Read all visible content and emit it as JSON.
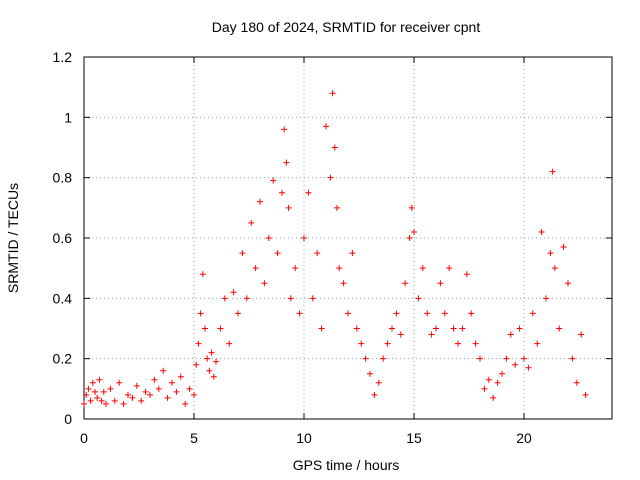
{
  "chart_data": {
    "type": "scatter",
    "title": "Day 180 of 2024, SRMTID for receiver cpnt",
    "xlabel": "GPS time / hours",
    "ylabel": "SRMTID / TECUs",
    "xlim": [
      0,
      24
    ],
    "ylim": [
      0,
      1.2
    ],
    "xticks": [
      0,
      5,
      10,
      15,
      20
    ],
    "xtick_labels": [
      "0",
      "5",
      "10",
      "15",
      "20"
    ],
    "yticks": [
      0,
      0.2,
      0.4,
      0.6,
      0.8,
      1,
      1.2
    ],
    "ytick_labels": [
      "0",
      "0.2",
      "0.4",
      "0.6",
      "0.8",
      "1",
      "1.2"
    ],
    "grid": true,
    "marker": "+",
    "color": "#ff0000",
    "series": [
      {
        "name": "SRMTID",
        "x": [
          0.0,
          0.1,
          0.2,
          0.3,
          0.4,
          0.5,
          0.6,
          0.7,
          0.8,
          0.9,
          1.0,
          1.2,
          1.4,
          1.6,
          1.8,
          2.0,
          2.2,
          2.4,
          2.6,
          2.8,
          3.0,
          3.2,
          3.4,
          3.6,
          3.8,
          4.0,
          4.2,
          4.4,
          4.6,
          4.8,
          5.0,
          5.1,
          5.2,
          5.3,
          5.4,
          5.5,
          5.6,
          5.7,
          5.8,
          5.9,
          6.0,
          6.2,
          6.4,
          6.6,
          6.8,
          7.0,
          7.2,
          7.4,
          7.6,
          7.8,
          8.0,
          8.2,
          8.4,
          8.6,
          8.8,
          9.0,
          9.1,
          9.2,
          9.3,
          9.4,
          9.6,
          9.8,
          10.0,
          10.2,
          10.4,
          10.6,
          10.8,
          11.0,
          11.2,
          11.3,
          11.4,
          11.5,
          11.6,
          11.8,
          12.0,
          12.2,
          12.4,
          12.6,
          12.8,
          13.0,
          13.2,
          13.4,
          13.6,
          13.8,
          14.0,
          14.2,
          14.4,
          14.6,
          14.8,
          14.9,
          15.0,
          15.2,
          15.4,
          15.6,
          15.8,
          16.0,
          16.2,
          16.4,
          16.6,
          16.8,
          17.0,
          17.2,
          17.4,
          17.6,
          17.8,
          18.0,
          18.2,
          18.4,
          18.6,
          18.8,
          19.0,
          19.2,
          19.4,
          19.6,
          19.8,
          20.0,
          20.2,
          20.4,
          20.6,
          20.8,
          21.0,
          21.2,
          21.3,
          21.4,
          21.6,
          21.8,
          22.0,
          22.2,
          22.4,
          22.6,
          22.8
        ],
        "y": [
          0.05,
          0.08,
          0.1,
          0.06,
          0.12,
          0.09,
          0.07,
          0.13,
          0.06,
          0.09,
          0.05,
          0.1,
          0.06,
          0.12,
          0.05,
          0.08,
          0.07,
          0.11,
          0.06,
          0.09,
          0.08,
          0.13,
          0.1,
          0.16,
          0.07,
          0.12,
          0.09,
          0.14,
          0.05,
          0.1,
          0.08,
          0.18,
          0.25,
          0.35,
          0.48,
          0.3,
          0.2,
          0.16,
          0.22,
          0.14,
          0.19,
          0.3,
          0.4,
          0.25,
          0.42,
          0.35,
          0.55,
          0.4,
          0.65,
          0.5,
          0.72,
          0.45,
          0.6,
          0.79,
          0.55,
          0.75,
          0.96,
          0.85,
          0.7,
          0.4,
          0.5,
          0.35,
          0.6,
          0.75,
          0.4,
          0.55,
          0.3,
          0.97,
          0.8,
          1.08,
          0.9,
          0.7,
          0.5,
          0.45,
          0.35,
          0.55,
          0.3,
          0.25,
          0.2,
          0.15,
          0.08,
          0.12,
          0.2,
          0.25,
          0.3,
          0.35,
          0.28,
          0.45,
          0.6,
          0.7,
          0.62,
          0.4,
          0.5,
          0.35,
          0.28,
          0.3,
          0.45,
          0.35,
          0.5,
          0.3,
          0.25,
          0.3,
          0.48,
          0.35,
          0.25,
          0.2,
          0.1,
          0.13,
          0.07,
          0.12,
          0.15,
          0.2,
          0.28,
          0.18,
          0.3,
          0.2,
          0.17,
          0.35,
          0.25,
          0.62,
          0.4,
          0.55,
          0.82,
          0.5,
          0.3,
          0.57,
          0.45,
          0.2,
          0.12,
          0.28,
          0.08
        ]
      }
    ]
  }
}
